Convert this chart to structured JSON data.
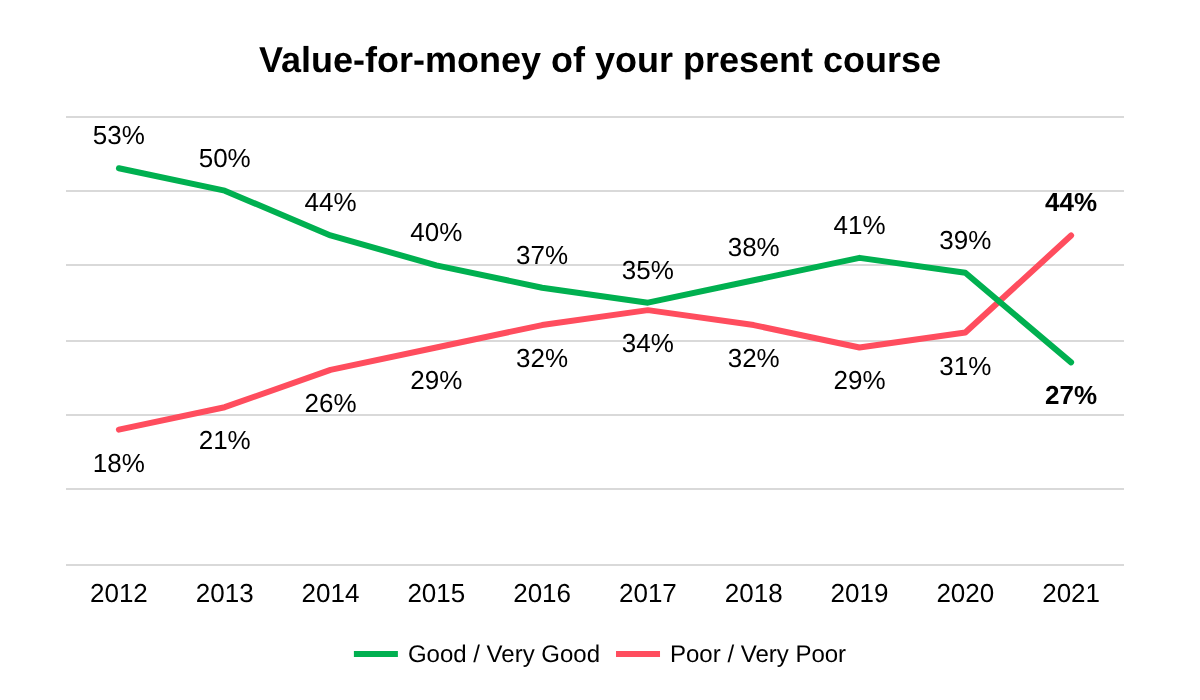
{
  "chart_data": {
    "type": "line",
    "title": "Value-for-money of your present course",
    "categories": [
      "2012",
      "2013",
      "2014",
      "2015",
      "2016",
      "2017",
      "2018",
      "2019",
      "2020",
      "2021"
    ],
    "series": [
      {
        "name": "Good / Very Good",
        "color": "#00b050",
        "values": [
          53,
          50,
          44,
          40,
          37,
          35,
          38,
          41,
          39,
          27
        ],
        "value_labels": [
          "53%",
          "50%",
          "44%",
          "40%",
          "37%",
          "35%",
          "38%",
          "41%",
          "39%",
          "27%"
        ]
      },
      {
        "name": "Poor / Very Poor",
        "color": "#ff4d5e",
        "values": [
          18,
          21,
          26,
          29,
          32,
          34,
          32,
          29,
          31,
          44
        ],
        "value_labels": [
          "18%",
          "21%",
          "26%",
          "29%",
          "32%",
          "34%",
          "32%",
          "29%",
          "31%",
          "44%"
        ]
      }
    ],
    "grid": "y",
    "tick_labels": "x",
    "legend": "bottom",
    "marker": "none",
    "line_style": "solid"
  }
}
